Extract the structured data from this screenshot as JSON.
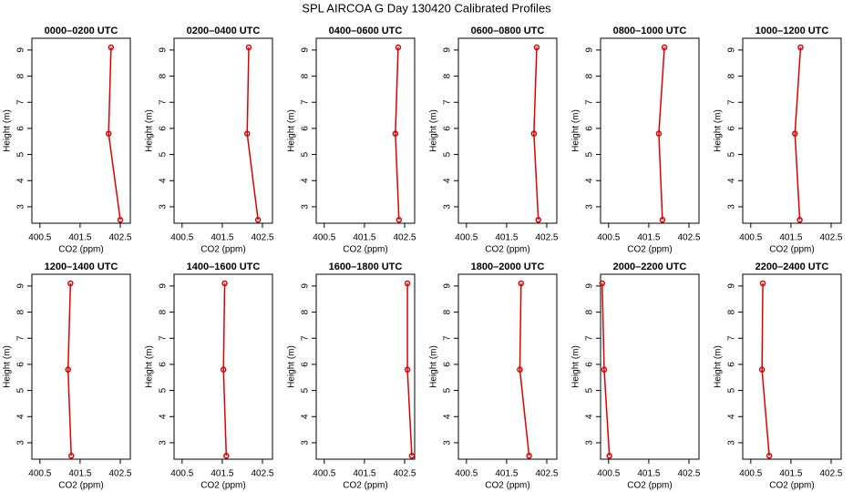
{
  "title": "SPL AIRCOA G  Day 130420  Calibrated Profiles",
  "chart_data": [
    {
      "type": "line",
      "title": "0000–0200 UTC",
      "xlabel": "CO2 (ppm)",
      "ylabel": "Height (m)",
      "xlim": [
        400.3,
        402.75
      ],
      "ylim": [
        2.37,
        9.45
      ],
      "xticks": [
        400.5,
        401.5,
        402.5
      ],
      "yticks": [
        3,
        4,
        5,
        6,
        7,
        8,
        9
      ],
      "series": [
        {
          "color": "#dd0000",
          "x": [
            402.27,
            402.21,
            402.5
          ],
          "values": [
            9.1,
            5.8,
            2.5
          ]
        }
      ]
    },
    {
      "type": "line",
      "title": "0200–0400 UTC",
      "xlabel": "CO2 (ppm)",
      "ylabel": "Height (m)",
      "xlim": [
        400.3,
        402.75
      ],
      "ylim": [
        2.37,
        9.45
      ],
      "xticks": [
        400.5,
        401.5,
        402.5
      ],
      "yticks": [
        3,
        4,
        5,
        6,
        7,
        8,
        9
      ],
      "series": [
        {
          "color": "#dd0000",
          "x": [
            402.16,
            402.12,
            402.39
          ],
          "values": [
            9.1,
            5.8,
            2.5
          ]
        }
      ]
    },
    {
      "type": "line",
      "title": "0400–0600 UTC",
      "xlabel": "CO2 (ppm)",
      "ylabel": "Height (m)",
      "xlim": [
        400.3,
        402.75
      ],
      "ylim": [
        2.37,
        9.45
      ],
      "xticks": [
        400.5,
        401.5,
        402.5
      ],
      "yticks": [
        3,
        4,
        5,
        6,
        7,
        8,
        9
      ],
      "series": [
        {
          "color": "#dd0000",
          "x": [
            402.34,
            402.27,
            402.36
          ],
          "values": [
            9.1,
            5.8,
            2.5
          ]
        }
      ]
    },
    {
      "type": "line",
      "title": "0600–0800 UTC",
      "xlabel": "CO2 (ppm)",
      "ylabel": "Height (m)",
      "xlim": [
        400.3,
        402.75
      ],
      "ylim": [
        2.37,
        9.45
      ],
      "xticks": [
        400.5,
        401.5,
        402.5
      ],
      "yticks": [
        3,
        4,
        5,
        6,
        7,
        8,
        9
      ],
      "series": [
        {
          "color": "#dd0000",
          "x": [
            402.25,
            402.18,
            402.29
          ],
          "values": [
            9.1,
            5.8,
            2.5
          ]
        }
      ]
    },
    {
      "type": "line",
      "title": "0800–1000 UTC",
      "xlabel": "CO2 (ppm)",
      "ylabel": "Height (m)",
      "xlim": [
        400.3,
        402.75
      ],
      "ylim": [
        2.37,
        9.45
      ],
      "xticks": [
        400.5,
        401.5,
        402.5
      ],
      "yticks": [
        3,
        4,
        5,
        6,
        7,
        8,
        9
      ],
      "series": [
        {
          "color": "#dd0000",
          "x": [
            401.89,
            401.75,
            401.84
          ],
          "values": [
            9.1,
            5.8,
            2.5
          ]
        }
      ]
    },
    {
      "type": "line",
      "title": "1000–1200 UTC",
      "xlabel": "CO2 (ppm)",
      "ylabel": "Height (m)",
      "xlim": [
        400.3,
        402.75
      ],
      "ylim": [
        2.37,
        9.45
      ],
      "xticks": [
        400.5,
        401.5,
        402.5
      ],
      "yticks": [
        3,
        4,
        5,
        6,
        7,
        8,
        9
      ],
      "series": [
        {
          "color": "#dd0000",
          "x": [
            401.74,
            401.6,
            401.72
          ],
          "values": [
            9.1,
            5.8,
            2.5
          ]
        }
      ]
    },
    {
      "type": "line",
      "title": "1200–1400 UTC",
      "xlabel": "CO2 (ppm)",
      "ylabel": "Height (m)",
      "xlim": [
        400.3,
        402.75
      ],
      "ylim": [
        2.37,
        9.45
      ],
      "xticks": [
        400.5,
        401.5,
        402.5
      ],
      "yticks": [
        3,
        4,
        5,
        6,
        7,
        8,
        9
      ],
      "series": [
        {
          "color": "#dd0000",
          "x": [
            401.26,
            401.2,
            401.28
          ],
          "values": [
            9.1,
            5.8,
            2.5
          ]
        }
      ]
    },
    {
      "type": "line",
      "title": "1400–1600 UTC",
      "xlabel": "CO2 (ppm)",
      "ylabel": "Height (m)",
      "xlim": [
        400.3,
        402.75
      ],
      "ylim": [
        2.37,
        9.45
      ],
      "xticks": [
        400.5,
        401.5,
        402.5
      ],
      "yticks": [
        3,
        4,
        5,
        6,
        7,
        8,
        9
      ],
      "series": [
        {
          "color": "#dd0000",
          "x": [
            401.56,
            401.53,
            401.6
          ],
          "values": [
            9.1,
            5.8,
            2.5
          ]
        }
      ]
    },
    {
      "type": "line",
      "title": "1600–1800 UTC",
      "xlabel": "CO2 (ppm)",
      "ylabel": "Height (m)",
      "xlim": [
        400.3,
        402.75
      ],
      "ylim": [
        2.37,
        9.45
      ],
      "xticks": [
        400.5,
        401.5,
        402.5
      ],
      "yticks": [
        3,
        4,
        5,
        6,
        7,
        8,
        9
      ],
      "series": [
        {
          "color": "#dd0000",
          "x": [
            402.57,
            402.57,
            402.68
          ],
          "values": [
            9.1,
            5.8,
            2.5
          ]
        }
      ]
    },
    {
      "type": "line",
      "title": "1800–2000 UTC",
      "xlabel": "CO2 (ppm)",
      "ylabel": "Height (m)",
      "xlim": [
        400.3,
        402.75
      ],
      "ylim": [
        2.37,
        9.45
      ],
      "xticks": [
        400.5,
        401.5,
        402.5
      ],
      "yticks": [
        3,
        4,
        5,
        6,
        7,
        8,
        9
      ],
      "series": [
        {
          "color": "#dd0000",
          "x": [
            401.86,
            401.83,
            402.06
          ],
          "values": [
            9.1,
            5.8,
            2.5
          ]
        }
      ]
    },
    {
      "type": "line",
      "title": "2000–2200 UTC",
      "xlabel": "CO2 (ppm)",
      "ylabel": "Height (m)",
      "xlim": [
        400.3,
        402.75
      ],
      "ylim": [
        2.37,
        9.45
      ],
      "xticks": [
        400.5,
        401.5,
        402.5
      ],
      "yticks": [
        3,
        4,
        5,
        6,
        7,
        8,
        9
      ],
      "series": [
        {
          "color": "#dd0000",
          "x": [
            400.34,
            400.39,
            400.52
          ],
          "values": [
            9.1,
            5.8,
            2.5
          ]
        }
      ]
    },
    {
      "type": "line",
      "title": "2200–2400 UTC",
      "xlabel": "CO2 (ppm)",
      "ylabel": "Height (m)",
      "xlim": [
        400.3,
        402.75
      ],
      "ylim": [
        2.37,
        9.45
      ],
      "xticks": [
        400.5,
        401.5,
        402.5
      ],
      "yticks": [
        3,
        4,
        5,
        6,
        7,
        8,
        9
      ],
      "series": [
        {
          "color": "#dd0000",
          "x": [
            400.8,
            400.78,
            400.96
          ],
          "values": [
            9.1,
            5.8,
            2.5
          ]
        }
      ]
    }
  ]
}
